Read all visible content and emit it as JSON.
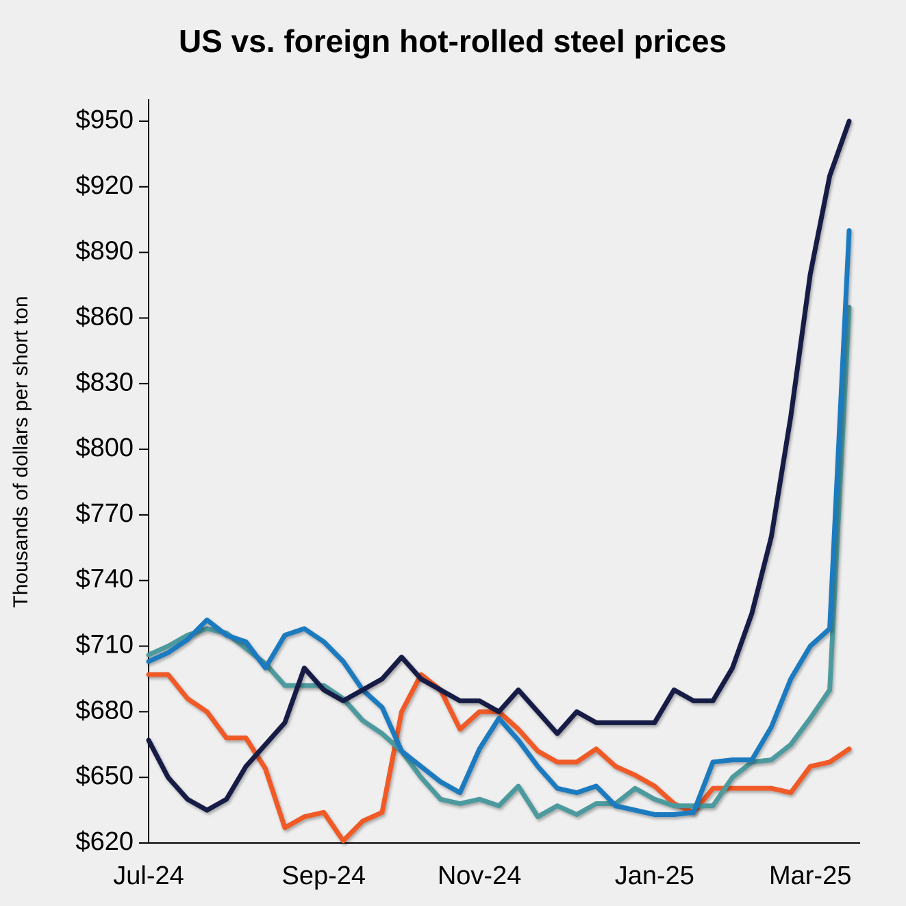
{
  "chart_data": {
    "type": "line",
    "title": "US vs. foreign hot-rolled steel prices",
    "y_label": "Thousands of dollars per short ton",
    "categories": [
      "Jul-24",
      null,
      null,
      null,
      null,
      null,
      null,
      null,
      null,
      "Sep-24",
      null,
      null,
      null,
      null,
      null,
      null,
      null,
      "Nov-24",
      null,
      null,
      null,
      null,
      null,
      null,
      null,
      null,
      "Jan-25",
      null,
      null,
      null,
      null,
      null,
      null,
      null,
      "Mar-25",
      null,
      null
    ],
    "series": [
      {
        "color": "#ef5a28",
        "values": [
          697,
          697,
          686,
          680,
          668,
          668,
          654,
          627,
          632,
          634,
          621,
          630,
          634,
          680,
          697,
          690,
          672,
          680,
          680,
          672,
          662,
          657,
          657,
          663,
          655,
          651,
          646,
          638,
          634,
          645,
          645,
          645,
          645,
          643,
          655,
          657,
          663
        ]
      },
      {
        "color": "#4e9a9e",
        "values": [
          706,
          710,
          715,
          718,
          716,
          709,
          702,
          692,
          692,
          692,
          686,
          676,
          670,
          662,
          650,
          640,
          638,
          640,
          637,
          646,
          632,
          637,
          633,
          638,
          638,
          645,
          640,
          637,
          637,
          637,
          650,
          657,
          658,
          665,
          677,
          690,
          865
        ]
      },
      {
        "color": "#1a7abf",
        "values": [
          703,
          707,
          713,
          722,
          715,
          712,
          700,
          715,
          718,
          712,
          703,
          690,
          682,
          662,
          655,
          648,
          643,
          663,
          677,
          667,
          655,
          645,
          643,
          646,
          637,
          635,
          633,
          633,
          634,
          657,
          658,
          658,
          673,
          695,
          710,
          718,
          900
        ]
      },
      {
        "color": "#141a45",
        "values": [
          667,
          650,
          640,
          635,
          640,
          655,
          665,
          675,
          700,
          690,
          685,
          690,
          695,
          705,
          695,
          690,
          685,
          685,
          680,
          690,
          680,
          670,
          680,
          675,
          675,
          675,
          675,
          690,
          685,
          685,
          700,
          725,
          760,
          815,
          880,
          925,
          950
        ]
      }
    ],
    "ylim": [
      620,
      960
    ],
    "yticks": [
      {
        "value": 620,
        "label": "$620"
      },
      {
        "value": 650,
        "label": "$650"
      },
      {
        "value": 680,
        "label": "$680"
      },
      {
        "value": 710,
        "label": "$710"
      },
      {
        "value": 740,
        "label": "$740"
      },
      {
        "value": 770,
        "label": "$770"
      },
      {
        "value": 800,
        "label": "$800"
      },
      {
        "value": 830,
        "label": "$830"
      },
      {
        "value": 860,
        "label": "$860"
      },
      {
        "value": 890,
        "label": "$890"
      },
      {
        "value": 920,
        "label": "$920"
      },
      {
        "value": 950,
        "label": "$950"
      }
    ],
    "grid": false
  }
}
